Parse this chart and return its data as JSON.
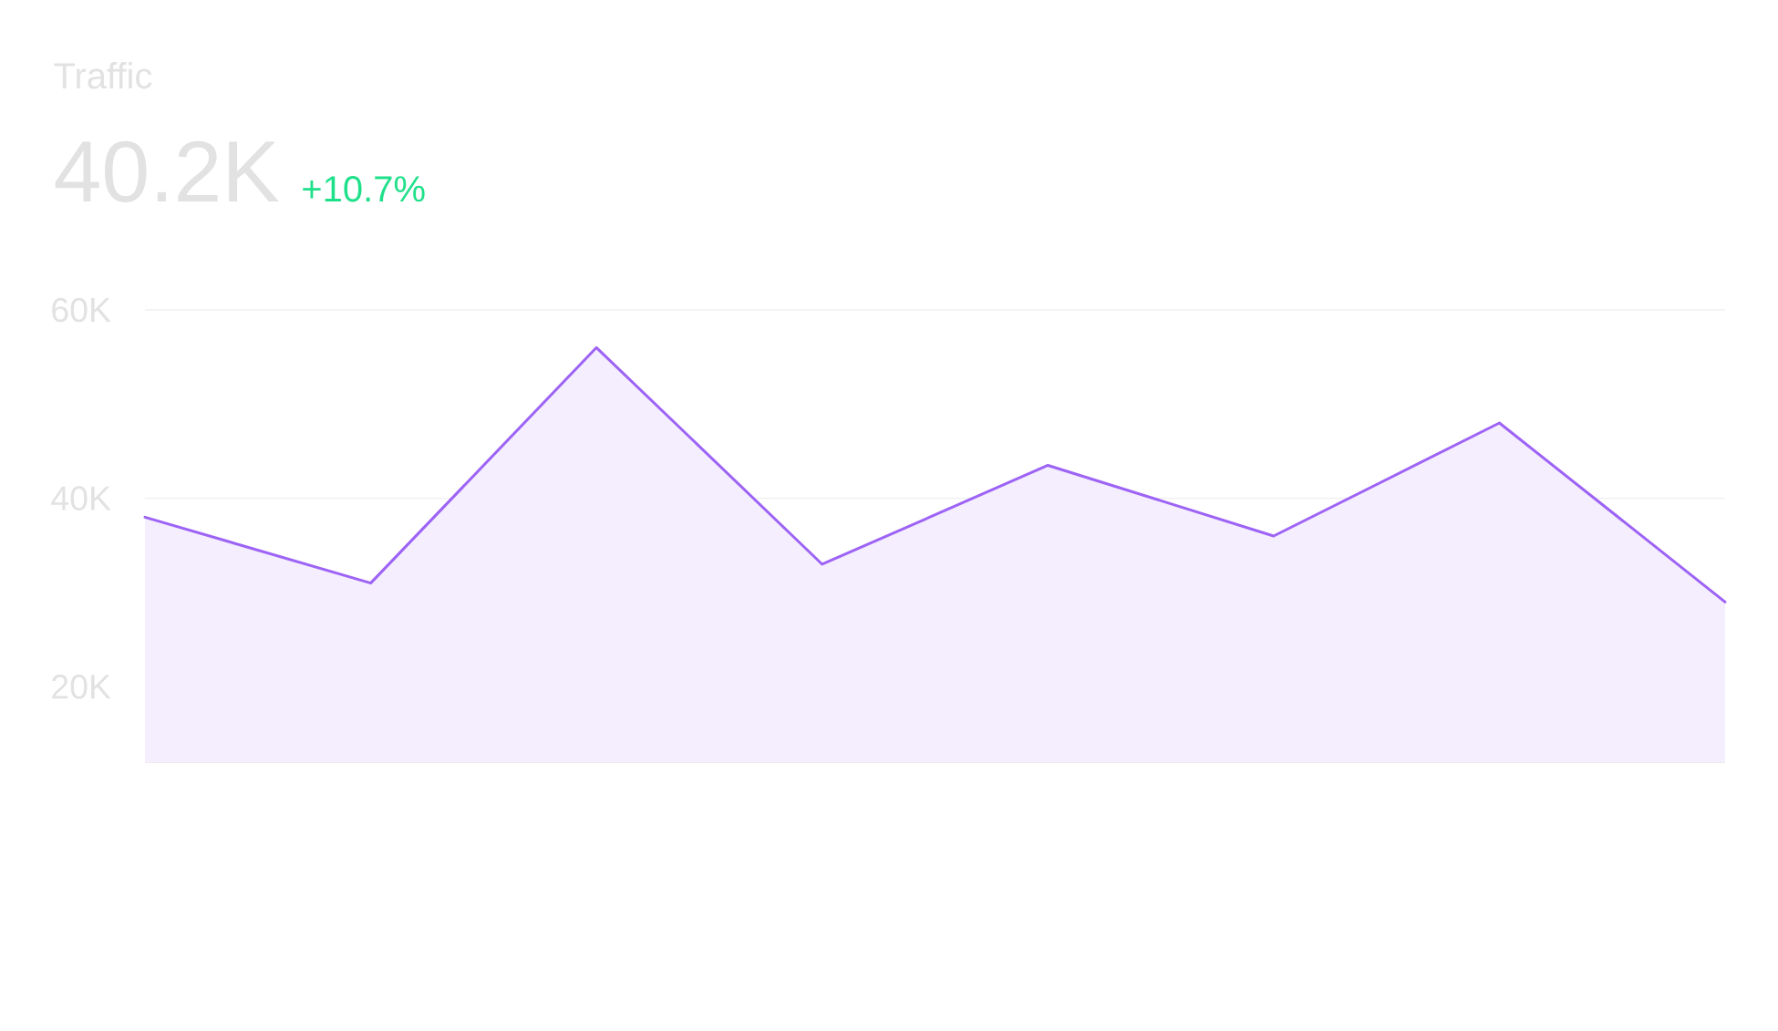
{
  "chart_data": {
    "type": "area",
    "title": "Traffic",
    "subtitle": "40.2K",
    "annotations": [
      "+10.7%"
    ],
    "categories": [
      null,
      null,
      null,
      null,
      null,
      null,
      null,
      null
    ],
    "values": [
      38,
      31,
      56,
      33,
      43.5,
      36,
      48,
      29
    ],
    "color": "#9d63f5",
    "ylim": [
      12,
      60
    ],
    "yticks": [
      {
        "value": 20,
        "label": "20K"
      },
      {
        "value": 40,
        "label": "40K"
      },
      {
        "value": 60,
        "label": "60K"
      }
    ],
    "grid": "y"
  }
}
